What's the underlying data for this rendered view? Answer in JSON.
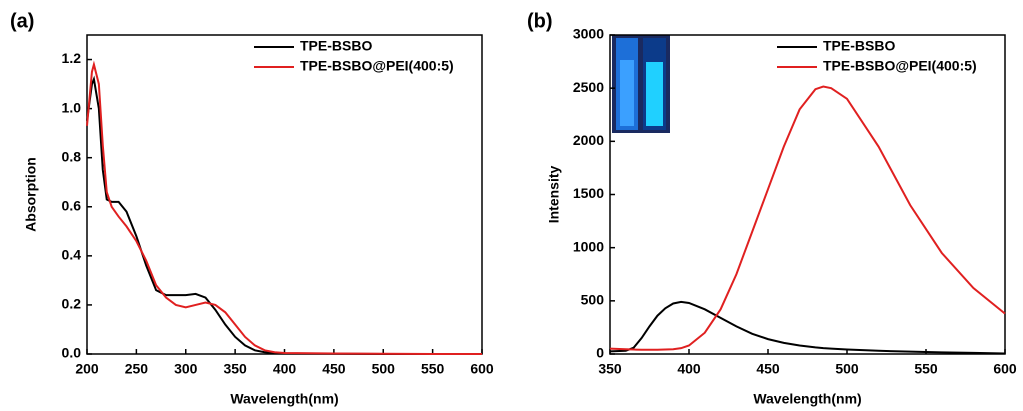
{
  "chart_data": [
    {
      "type": "line",
      "panel": "(a)",
      "x_label": "Wavelength(nm)",
      "y_label": "Absorption",
      "x": [
        200,
        205,
        207,
        212,
        216,
        220,
        225,
        232,
        240,
        250,
        260,
        270,
        280,
        290,
        300,
        310,
        320,
        330,
        340,
        350,
        360,
        370,
        380,
        390,
        400,
        450,
        500,
        550,
        600
      ],
      "series": [
        {
          "name": "TPE-BSBO",
          "color": "#000000",
          "values": [
            0.95,
            1.1,
            1.12,
            1.0,
            0.75,
            0.63,
            0.62,
            0.62,
            0.58,
            0.48,
            0.36,
            0.26,
            0.24,
            0.24,
            0.24,
            0.245,
            0.23,
            0.18,
            0.12,
            0.07,
            0.035,
            0.015,
            0.007,
            0.003,
            0.002,
            0.001,
            0,
            0,
            0
          ]
        },
        {
          "name": "TPE-BSBO@PEI(400:5)",
          "color": "#e02020",
          "values": [
            0.93,
            1.15,
            1.18,
            1.1,
            0.85,
            0.66,
            0.6,
            0.56,
            0.52,
            0.46,
            0.38,
            0.28,
            0.23,
            0.2,
            0.19,
            0.2,
            0.21,
            0.2,
            0.17,
            0.12,
            0.07,
            0.035,
            0.015,
            0.007,
            0.004,
            0.002,
            0.001,
            0,
            0
          ]
        }
      ],
      "xlim": [
        200,
        600
      ],
      "xticks": [
        200,
        250,
        300,
        350,
        400,
        450,
        500,
        550,
        600
      ],
      "ylim": [
        0,
        1.3
      ],
      "yticks": [
        {
          "value": 0,
          "label": "0.0"
        },
        0.2,
        0.4,
        0.6,
        0.8,
        {
          "value": 1,
          "label": "1.0"
        },
        1.2
      ],
      "legend": "top-right"
    },
    {
      "type": "line",
      "panel": "(b)",
      "x_label": "Wavelength(nm)",
      "y_label": "Intensity",
      "x": [
        350,
        360,
        365,
        370,
        375,
        380,
        385,
        390,
        395,
        400,
        410,
        420,
        430,
        440,
        450,
        460,
        470,
        480,
        485,
        490,
        500,
        520,
        540,
        560,
        580,
        600
      ],
      "series": [
        {
          "name": "TPE-BSBO",
          "color": "#000000",
          "values": [
            25,
            30,
            60,
            150,
            260,
            360,
            430,
            475,
            490,
            480,
            420,
            340,
            260,
            190,
            140,
            105,
            80,
            62,
            55,
            50,
            42,
            30,
            22,
            15,
            10,
            5
          ]
        },
        {
          "name": "TPE-BSBO@PEI(400:5)",
          "color": "#e02020",
          "values": [
            50,
            45,
            42,
            40,
            40,
            40,
            42,
            45,
            55,
            80,
            200,
            420,
            750,
            1150,
            1550,
            1950,
            2300,
            2490,
            2515,
            2500,
            2400,
            1950,
            1400,
            950,
            620,
            380
          ]
        }
      ],
      "xlim": [
        350,
        600
      ],
      "xticks": [
        350,
        400,
        450,
        500,
        550,
        600
      ],
      "ylim": [
        0,
        3000
      ],
      "yticks": [
        0,
        500,
        1000,
        1500,
        2000,
        2500,
        3000
      ],
      "legend": "top-right"
    }
  ]
}
